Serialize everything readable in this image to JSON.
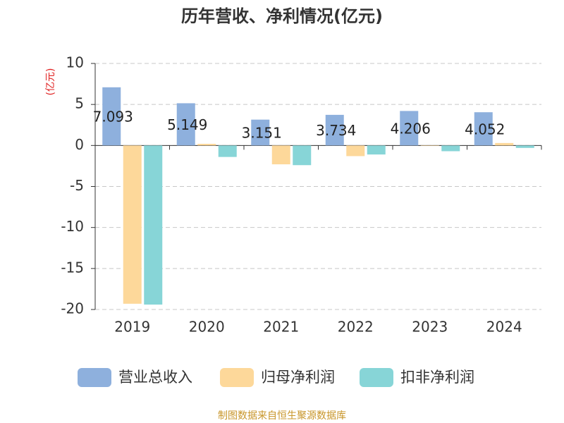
{
  "chart_data": {
    "type": "bar",
    "title": "历年营收、净利情况(亿元)",
    "y_label": "(亿元)",
    "source": "制图数据来自恒生聚源数据库",
    "categories": [
      "2019",
      "2020",
      "2021",
      "2022",
      "2023",
      "2024"
    ],
    "series": [
      {
        "name": "营业总收入",
        "color": "#8eb0dd",
        "values": [
          7.093,
          5.149,
          3.151,
          3.734,
          4.206,
          4.052
        ],
        "show_labels": true
      },
      {
        "name": "归母净利润",
        "color": "#fdd89a",
        "values": [
          -19.3,
          0.2,
          -2.3,
          -1.3,
          -0.05,
          0.3
        ]
      },
      {
        "name": "扣非净利润",
        "color": "#87d5d7",
        "values": [
          -19.4,
          -1.4,
          -2.4,
          -1.1,
          -0.7,
          -0.3
        ]
      }
    ],
    "ylim": [
      -20,
      10
    ],
    "yticks": [
      -20,
      -15,
      -10,
      -5,
      0,
      5,
      10
    ],
    "grid": true,
    "legend": "bottom"
  }
}
